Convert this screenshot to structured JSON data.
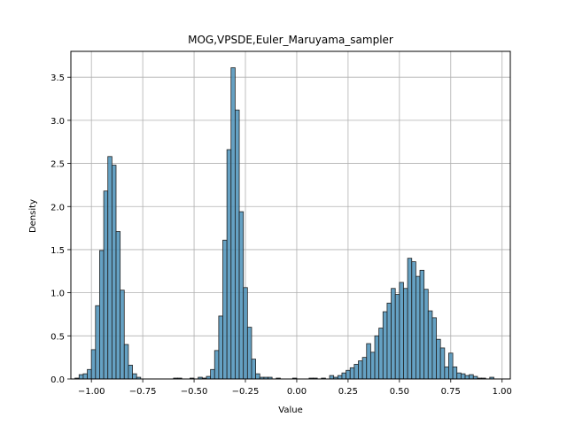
{
  "chart_data": {
    "type": "histogram",
    "title": "MOG,VPSDE,Euler_Maruyama_sampler",
    "xlabel": "Value",
    "ylabel": "Density",
    "xlim": [
      -1.1,
      1.04
    ],
    "ylim": [
      0,
      3.8
    ],
    "xticks": [
      -1.0,
      -0.75,
      -0.5,
      -0.25,
      0.0,
      0.25,
      0.5,
      0.75,
      1.0
    ],
    "xtick_labels": [
      "−1.00",
      "−0.75",
      "−0.50",
      "−0.25",
      "0.00",
      "0.25",
      "0.50",
      "0.75",
      "1.00"
    ],
    "yticks": [
      0.0,
      0.5,
      1.0,
      1.5,
      2.0,
      2.5,
      3.0,
      3.5
    ],
    "ytick_labels": [
      "0.0",
      "0.5",
      "1.0",
      "1.5",
      "2.0",
      "2.5",
      "3.0",
      "3.5"
    ],
    "grid": true,
    "bar_color": "#4a90b8",
    "edge_color": "#222222",
    "bin_width": 0.02,
    "bins": [
      {
        "x": -1.07,
        "y": 0.01
      },
      {
        "x": -1.05,
        "y": 0.05
      },
      {
        "x": -1.03,
        "y": 0.06
      },
      {
        "x": -1.01,
        "y": 0.11
      },
      {
        "x": -0.99,
        "y": 0.34
      },
      {
        "x": -0.97,
        "y": 0.85
      },
      {
        "x": -0.95,
        "y": 1.49
      },
      {
        "x": -0.93,
        "y": 2.18
      },
      {
        "x": -0.91,
        "y": 2.58
      },
      {
        "x": -0.89,
        "y": 2.48
      },
      {
        "x": -0.87,
        "y": 1.71
      },
      {
        "x": -0.85,
        "y": 1.03
      },
      {
        "x": -0.83,
        "y": 0.4
      },
      {
        "x": -0.81,
        "y": 0.16
      },
      {
        "x": -0.79,
        "y": 0.06
      },
      {
        "x": -0.77,
        "y": 0.02
      },
      {
        "x": -0.59,
        "y": 0.01
      },
      {
        "x": -0.57,
        "y": 0.01
      },
      {
        "x": -0.51,
        "y": 0.01
      },
      {
        "x": -0.47,
        "y": 0.02
      },
      {
        "x": -0.45,
        "y": 0.01
      },
      {
        "x": -0.43,
        "y": 0.03
      },
      {
        "x": -0.41,
        "y": 0.11
      },
      {
        "x": -0.39,
        "y": 0.33
      },
      {
        "x": -0.37,
        "y": 0.73
      },
      {
        "x": -0.35,
        "y": 1.61
      },
      {
        "x": -0.33,
        "y": 2.66
      },
      {
        "x": -0.31,
        "y": 3.61
      },
      {
        "x": -0.29,
        "y": 3.12
      },
      {
        "x": -0.27,
        "y": 1.94
      },
      {
        "x": -0.25,
        "y": 1.06
      },
      {
        "x": -0.23,
        "y": 0.6
      },
      {
        "x": -0.21,
        "y": 0.23
      },
      {
        "x": -0.19,
        "y": 0.06
      },
      {
        "x": -0.17,
        "y": 0.02
      },
      {
        "x": -0.15,
        "y": 0.02
      },
      {
        "x": -0.13,
        "y": 0.02
      },
      {
        "x": -0.09,
        "y": 0.01
      },
      {
        "x": -0.01,
        "y": 0.01
      },
      {
        "x": 0.07,
        "y": 0.01
      },
      {
        "x": 0.09,
        "y": 0.01
      },
      {
        "x": 0.13,
        "y": 0.01
      },
      {
        "x": 0.17,
        "y": 0.04
      },
      {
        "x": 0.19,
        "y": 0.02
      },
      {
        "x": 0.21,
        "y": 0.04
      },
      {
        "x": 0.23,
        "y": 0.07
      },
      {
        "x": 0.25,
        "y": 0.1
      },
      {
        "x": 0.27,
        "y": 0.13
      },
      {
        "x": 0.29,
        "y": 0.17
      },
      {
        "x": 0.31,
        "y": 0.21
      },
      {
        "x": 0.33,
        "y": 0.25
      },
      {
        "x": 0.35,
        "y": 0.41
      },
      {
        "x": 0.37,
        "y": 0.31
      },
      {
        "x": 0.39,
        "y": 0.5
      },
      {
        "x": 0.41,
        "y": 0.59
      },
      {
        "x": 0.43,
        "y": 0.78
      },
      {
        "x": 0.45,
        "y": 0.88
      },
      {
        "x": 0.47,
        "y": 1.05
      },
      {
        "x": 0.49,
        "y": 0.98
      },
      {
        "x": 0.51,
        "y": 1.12
      },
      {
        "x": 0.53,
        "y": 1.05
      },
      {
        "x": 0.55,
        "y": 1.4
      },
      {
        "x": 0.57,
        "y": 1.36
      },
      {
        "x": 0.59,
        "y": 1.19
      },
      {
        "x": 0.61,
        "y": 1.26
      },
      {
        "x": 0.63,
        "y": 1.04
      },
      {
        "x": 0.65,
        "y": 0.79
      },
      {
        "x": 0.67,
        "y": 0.71
      },
      {
        "x": 0.69,
        "y": 0.46
      },
      {
        "x": 0.71,
        "y": 0.36
      },
      {
        "x": 0.73,
        "y": 0.14
      },
      {
        "x": 0.75,
        "y": 0.3
      },
      {
        "x": 0.77,
        "y": 0.14
      },
      {
        "x": 0.79,
        "y": 0.07
      },
      {
        "x": 0.81,
        "y": 0.06
      },
      {
        "x": 0.83,
        "y": 0.04
      },
      {
        "x": 0.85,
        "y": 0.05
      },
      {
        "x": 0.87,
        "y": 0.03
      },
      {
        "x": 0.89,
        "y": 0.01
      },
      {
        "x": 0.91,
        "y": 0.01
      },
      {
        "x": 0.95,
        "y": 0.02
      }
    ]
  }
}
